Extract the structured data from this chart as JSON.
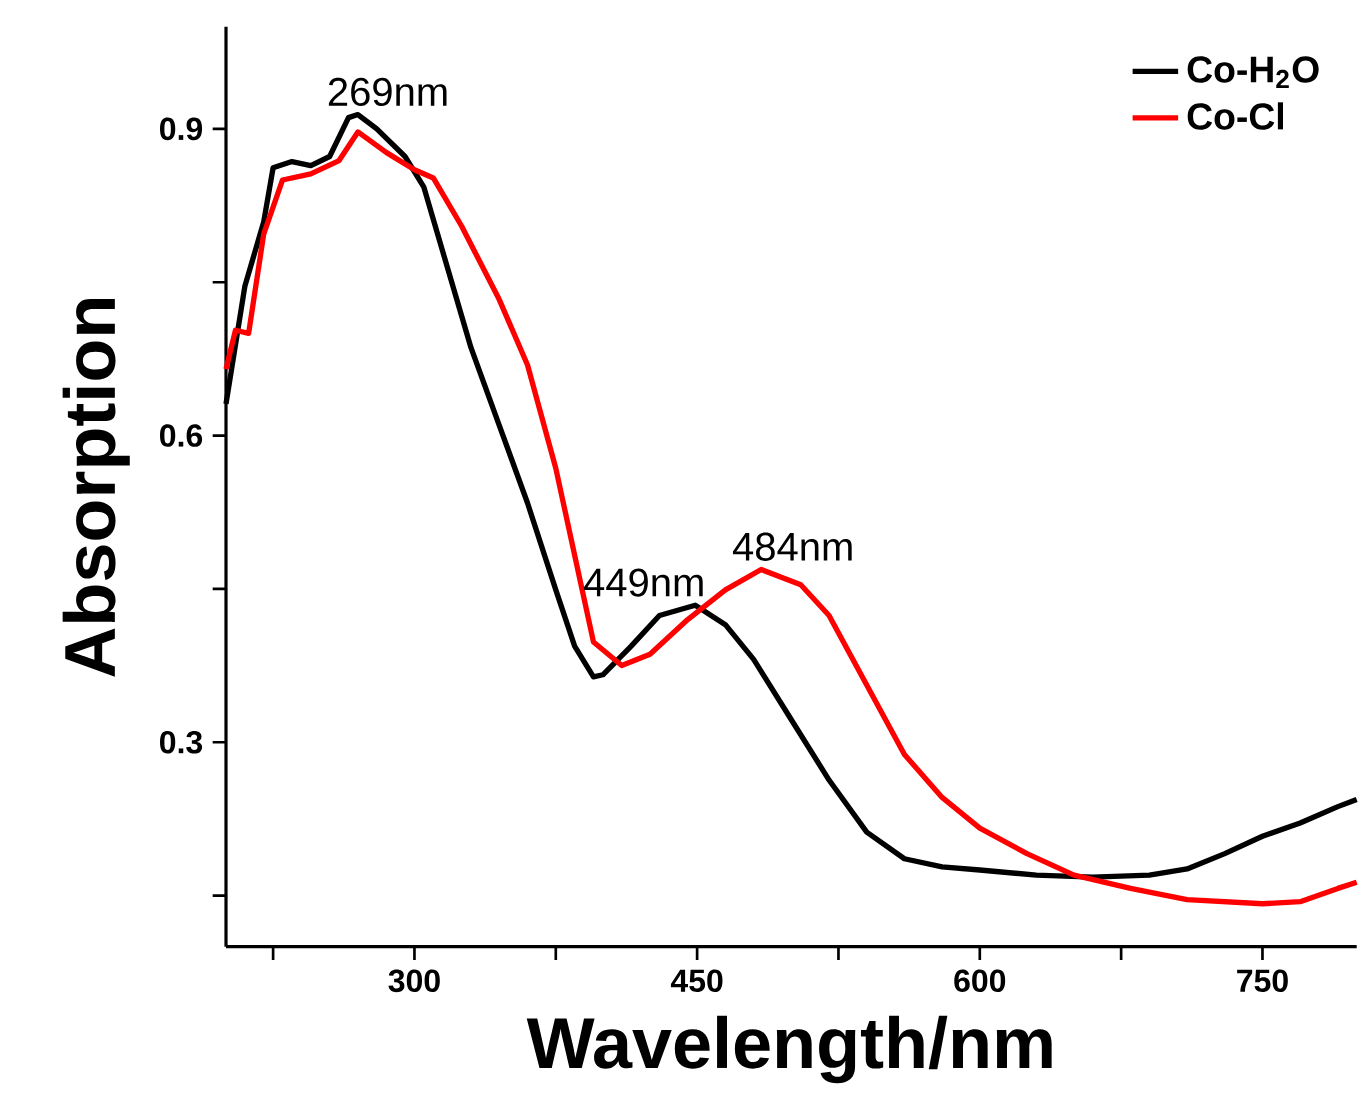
{
  "chart_data": {
    "type": "line",
    "xlabel": "Wavelength/nm",
    "ylabel": "Absorption",
    "xlim": [
      200,
      800
    ],
    "ylim": [
      0.1,
      1.0
    ],
    "xticks": [
      {
        "value": 225,
        "label": null
      },
      300,
      {
        "value": 375,
        "label": null
      },
      450,
      {
        "value": 525,
        "label": null
      },
      600,
      {
        "value": 675,
        "label": null
      },
      750
    ],
    "yticks": [
      {
        "value": 0.15,
        "label": null
      },
      0.3,
      {
        "value": 0.45,
        "label": null
      },
      0.6,
      {
        "value": 0.75,
        "label": null
      },
      0.9
    ],
    "legend": "top right",
    "marker": "none",
    "line_style": "solid",
    "annotations": [
      {
        "text": "269nm",
        "x": 269,
        "y": 0.914
      },
      {
        "text": "449nm",
        "x": 449,
        "y": 0.434
      },
      {
        "text": "484nm",
        "x": 484,
        "y": 0.469
      }
    ],
    "series": [
      {
        "name": "Co-H$_{2}$O",
        "color": "#000000",
        "x": [
          200,
          210,
          220,
          225,
          235,
          245,
          255,
          265,
          270,
          280,
          295,
          305,
          315,
          330,
          345,
          360,
          375,
          385,
          395,
          400,
          415,
          430,
          449,
          465,
          480,
          500,
          520,
          540,
          560,
          580,
          600,
          630,
          660,
          690,
          710,
          730,
          750,
          770,
          790,
          800
        ],
        "values": [
          0.631,
          0.746,
          0.809,
          0.862,
          0.868,
          0.864,
          0.873,
          0.911,
          0.914,
          0.9,
          0.873,
          0.843,
          0.78,
          0.686,
          0.61,
          0.534,
          0.449,
          0.394,
          0.364,
          0.366,
          0.394,
          0.424,
          0.434,
          0.415,
          0.381,
          0.322,
          0.263,
          0.212,
          0.186,
          0.178,
          0.175,
          0.17,
          0.168,
          0.17,
          0.176,
          0.191,
          0.208,
          0.221,
          0.237,
          0.244
        ]
      },
      {
        "name": "Co-Cl",
        "color": "#ff0000",
        "x": [
          200,
          205,
          212,
          220,
          230,
          245,
          260,
          270,
          285,
          300,
          310,
          325,
          345,
          360,
          375,
          385,
          395,
          410,
          425,
          445,
          465,
          484,
          505,
          520,
          540,
          560,
          580,
          600,
          625,
          650,
          680,
          710,
          750,
          770,
          790,
          800
        ],
        "values": [
          0.665,
          0.703,
          0.7,
          0.797,
          0.85,
          0.856,
          0.869,
          0.897,
          0.877,
          0.86,
          0.852,
          0.805,
          0.733,
          0.669,
          0.568,
          0.483,
          0.398,
          0.375,
          0.386,
          0.42,
          0.449,
          0.469,
          0.454,
          0.424,
          0.356,
          0.288,
          0.246,
          0.216,
          0.191,
          0.17,
          0.157,
          0.146,
          0.142,
          0.144,
          0.157,
          0.163
        ]
      }
    ]
  }
}
